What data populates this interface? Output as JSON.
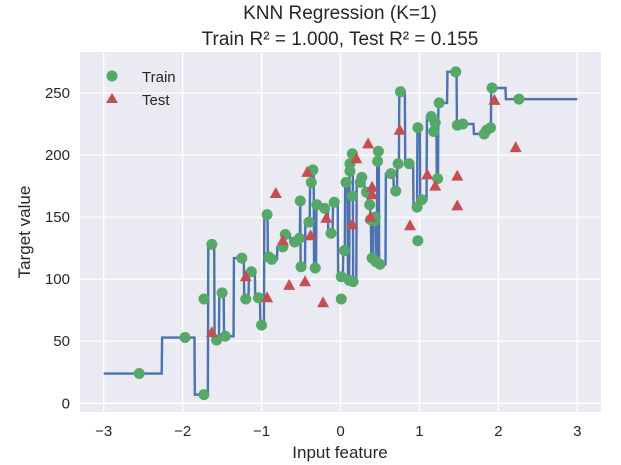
{
  "chart_data": {
    "type": "scatter",
    "title_line1": "KNN Regression (K=1)",
    "title_line2": "Train R² = 1.000,  Test R² = 0.155",
    "xlabel": "Input feature",
    "ylabel": "Target value",
    "xlim": [
      -3.3,
      3.3
    ],
    "ylim": [
      -7,
      283
    ],
    "xticks": [
      -3,
      -2,
      -1,
      0,
      1,
      2,
      3
    ],
    "yticks": [
      0,
      50,
      100,
      150,
      200,
      250
    ],
    "grid": true,
    "legend_position": "upper-left",
    "legend": [
      {
        "label": "Train",
        "marker": "circle"
      },
      {
        "label": "Test",
        "marker": "triangle"
      }
    ],
    "colors": {
      "background": "#EAEAF2",
      "grid": "#FFFFFF",
      "prediction_line": "#4C72B0",
      "train": "#55A868",
      "test": "#C44E52"
    },
    "series": [
      {
        "name": "Train",
        "marker": "circle",
        "points": [
          [
            -2.55,
            24
          ],
          [
            -1.97,
            53
          ],
          [
            -1.73,
            7
          ],
          [
            -1.73,
            84
          ],
          [
            -1.63,
            128
          ],
          [
            -1.57,
            51
          ],
          [
            -1.5,
            89
          ],
          [
            -1.46,
            54
          ],
          [
            -1.25,
            117
          ],
          [
            -1.2,
            84
          ],
          [
            -1.13,
            106
          ],
          [
            -1.04,
            85
          ],
          [
            -1.0,
            63
          ],
          [
            -0.93,
            152
          ],
          [
            -0.91,
            118
          ],
          [
            -0.87,
            116
          ],
          [
            -0.73,
            126
          ],
          [
            -0.7,
            136
          ],
          [
            -0.58,
            130
          ],
          [
            -0.52,
            133
          ],
          [
            -0.51,
            163
          ],
          [
            -0.5,
            110
          ],
          [
            -0.4,
            146
          ],
          [
            -0.37,
            178
          ],
          [
            -0.35,
            188
          ],
          [
            -0.32,
            109
          ],
          [
            -0.3,
            160
          ],
          [
            -0.2,
            157
          ],
          [
            -0.12,
            137
          ],
          [
            -0.08,
            162
          ],
          [
            0.01,
            102
          ],
          [
            0.01,
            84
          ],
          [
            0.05,
            123
          ],
          [
            0.07,
            178
          ],
          [
            0.11,
            99
          ],
          [
            0.12,
            193
          ],
          [
            0.12,
            187
          ],
          [
            0.15,
            201
          ],
          [
            0.15,
            167
          ],
          [
            0.16,
            98
          ],
          [
            0.25,
            178
          ],
          [
            0.27,
            182
          ],
          [
            0.33,
            170
          ],
          [
            0.37,
            160
          ],
          [
            0.38,
            148
          ],
          [
            0.4,
            117
          ],
          [
            0.43,
            147
          ],
          [
            0.44,
            150
          ],
          [
            0.45,
            114
          ],
          [
            0.47,
            195
          ],
          [
            0.48,
            203
          ],
          [
            0.5,
            112
          ],
          [
            0.64,
            185
          ],
          [
            0.7,
            171
          ],
          [
            0.73,
            193
          ],
          [
            0.76,
            251
          ],
          [
            0.87,
            193
          ],
          [
            0.97,
            158
          ],
          [
            0.98,
            222
          ],
          [
            0.98,
            131
          ],
          [
            1.03,
            164
          ],
          [
            1.15,
            231
          ],
          [
            1.18,
            219
          ],
          [
            1.2,
            226
          ],
          [
            1.23,
            181
          ],
          [
            1.25,
            242
          ],
          [
            1.46,
            267
          ],
          [
            1.48,
            224
          ],
          [
            1.55,
            225
          ],
          [
            1.82,
            217
          ],
          [
            1.85,
            220
          ],
          [
            1.9,
            222
          ],
          [
            1.92,
            254
          ],
          [
            2.26,
            245
          ]
        ]
      },
      {
        "name": "Test",
        "marker": "triangle",
        "points": [
          [
            -1.63,
            57
          ],
          [
            -1.2,
            102
          ],
          [
            -0.93,
            85
          ],
          [
            -0.82,
            169
          ],
          [
            -0.73,
            131
          ],
          [
            -0.65,
            95
          ],
          [
            -0.45,
            98
          ],
          [
            -0.42,
            186
          ],
          [
            -0.38,
            135
          ],
          [
            -0.22,
            81
          ],
          [
            -0.18,
            149
          ],
          [
            0.15,
            144
          ],
          [
            0.2,
            197
          ],
          [
            0.35,
            209
          ],
          [
            0.38,
            150
          ],
          [
            0.4,
            174
          ],
          [
            0.4,
            168
          ],
          [
            0.75,
            220
          ],
          [
            0.88,
            143
          ],
          [
            1.1,
            184
          ],
          [
            1.2,
            175
          ],
          [
            1.48,
            159
          ],
          [
            1.48,
            183
          ],
          [
            1.95,
            244
          ],
          [
            2.22,
            206
          ]
        ]
      }
    ]
  }
}
